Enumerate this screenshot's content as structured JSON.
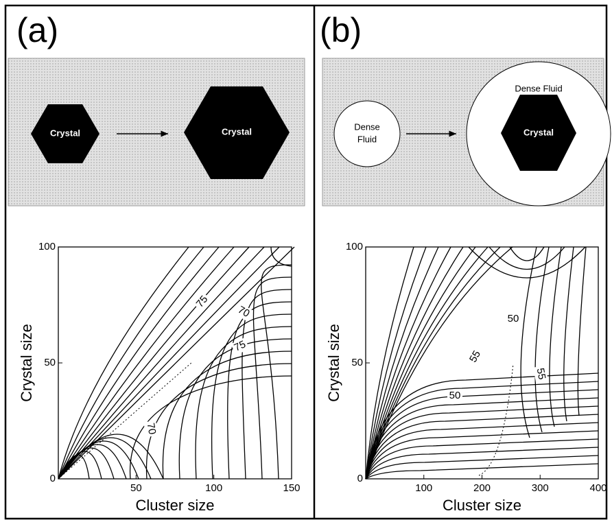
{
  "panels": [
    {
      "label": "(a)",
      "schematic": {
        "left": "Crystal",
        "right": "Crystal"
      },
      "chart_data": {
        "type": "contour",
        "xlabel": "Cluster size",
        "ylabel": "Crystal size",
        "xlim": [
          0,
          150
        ],
        "ylim": [
          0,
          100
        ],
        "xticks": [
          50,
          100,
          150
        ],
        "yticks": [
          0,
          50,
          100
        ],
        "contour_labels": [
          70,
          75,
          75,
          70
        ]
      }
    },
    {
      "label": "(b)",
      "schematic": {
        "left_lines": [
          "Dense",
          "Fluid"
        ],
        "outer": "Dense Fluid",
        "inner": "Crystal"
      },
      "chart_data": {
        "type": "contour",
        "xlabel": "Cluster size",
        "ylabel": "Crystal size",
        "xlim": [
          0,
          400
        ],
        "ylim": [
          0,
          100
        ],
        "xticks": [
          100,
          200,
          300,
          400
        ],
        "yticks": [
          0,
          50,
          100
        ],
        "contour_labels": [
          50,
          55,
          55,
          50
        ]
      }
    }
  ]
}
